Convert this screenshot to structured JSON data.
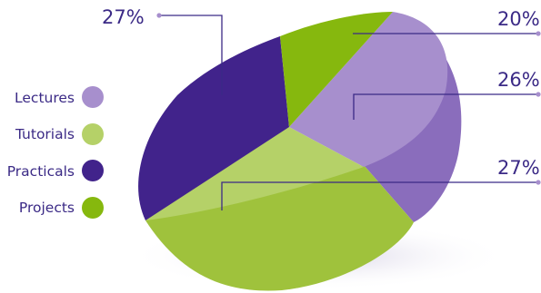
{
  "chart_data": {
    "type": "pie",
    "style": "3d-tilted",
    "slices": [
      {
        "label": "Lectures",
        "value": 26,
        "display": "26%",
        "color": "#a78fcd",
        "side_color": "#8a6dbc"
      },
      {
        "label": "Tutorials",
        "value": 27,
        "display": "27%",
        "color": "#b5d168",
        "side_color": "#9fc23c"
      },
      {
        "label": "Practicals",
        "value": 27,
        "display": "27%",
        "color": "#41238b",
        "side_color": "#2f1870"
      },
      {
        "label": "Projects",
        "value": 20,
        "display": "20%",
        "color": "#86b80e",
        "side_color": "#6e9a08"
      }
    ],
    "legend": {
      "position": "left",
      "items": [
        {
          "label": "Lectures",
          "color": "#a78fcd"
        },
        {
          "label": "Tutorials",
          "color": "#b5d168"
        },
        {
          "label": "Practicals",
          "color": "#41238b"
        },
        {
          "label": "Projects",
          "color": "#86b80e"
        }
      ]
    }
  },
  "colors": {
    "text": "#3b2a86",
    "leader_line": "#3b2a86",
    "label_dot": "#a78fcd"
  }
}
